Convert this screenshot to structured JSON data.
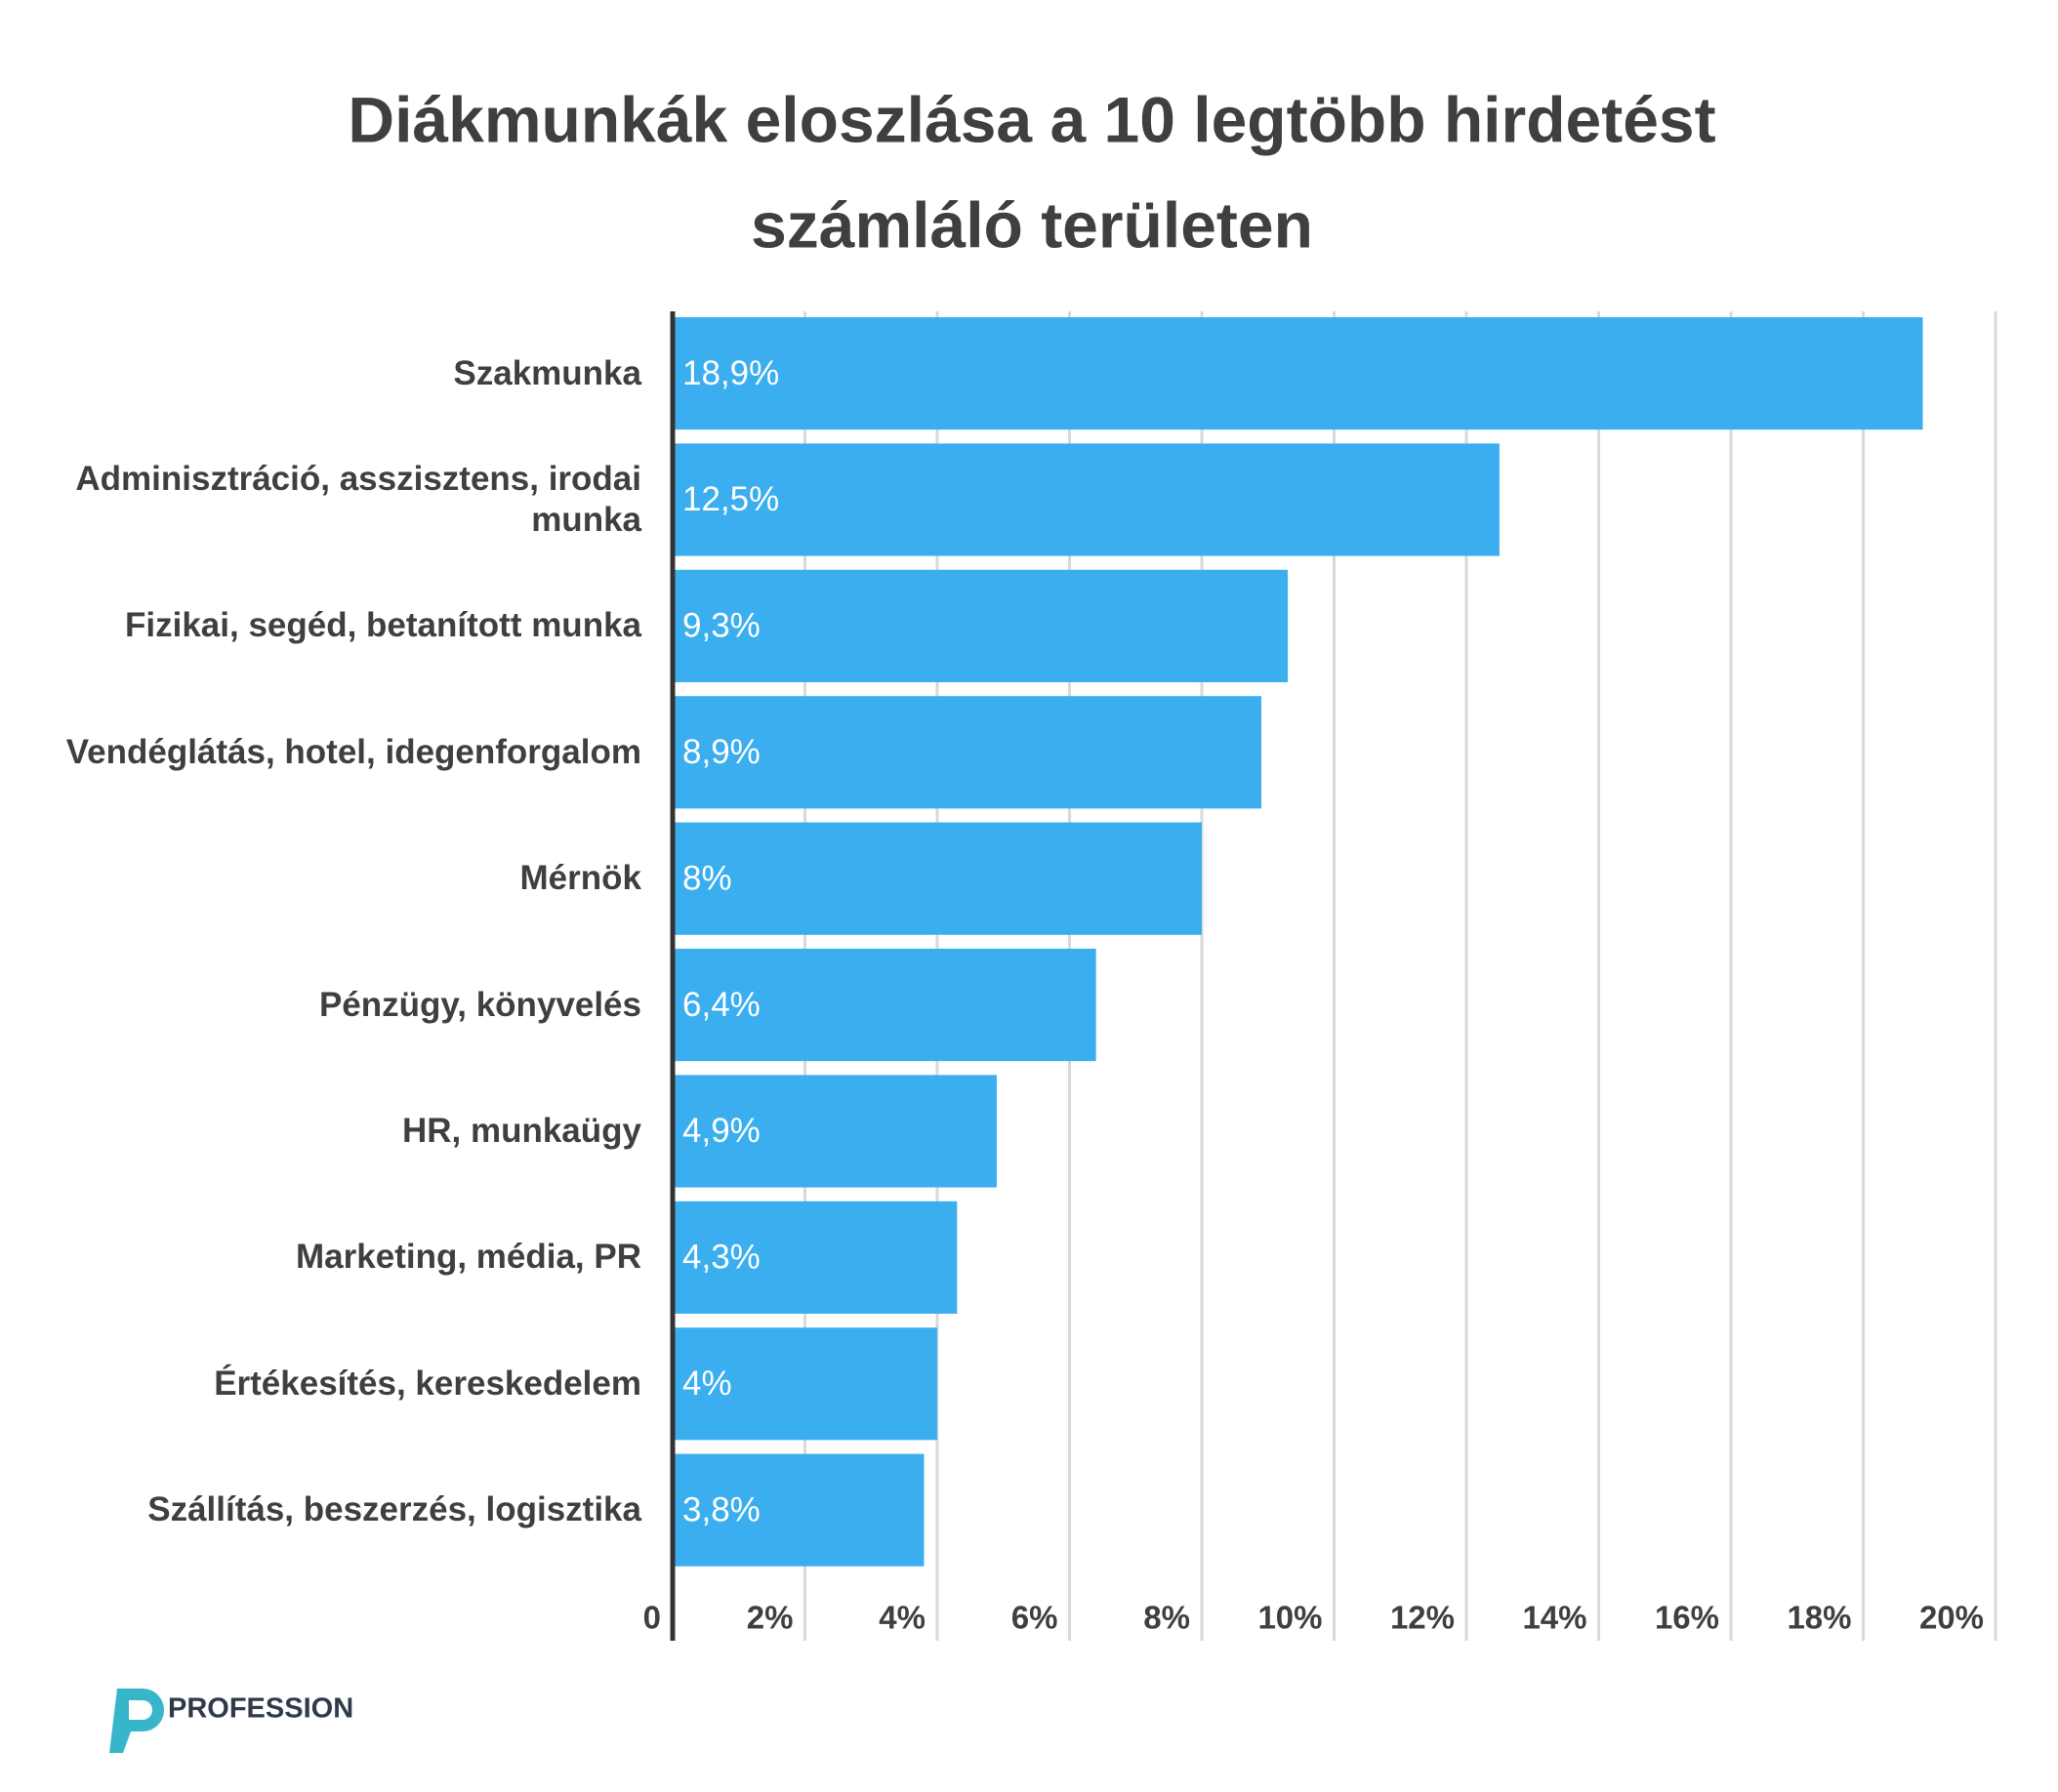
{
  "chart_data": {
    "type": "bar",
    "orientation": "horizontal",
    "title": [
      "Diákmunkák eloszlása a 10 legtöbb hirdetést",
      "számláló területen"
    ],
    "categories": [
      "Szakmunka",
      "Adminisztráció, asszisztens, irodai munka",
      "Fizikai, segéd, betanított munka",
      "Vendéglátás, hotel, idegenforgalom",
      "Mérnök",
      "Pénzügy, könyvelés",
      "HR, munkaügy",
      "Marketing, média, PR",
      "Értékesítés, kereskedelem",
      "Szállítás, beszerzés, logisztika"
    ],
    "values": [
      18.9,
      12.5,
      9.3,
      8.9,
      8,
      6.4,
      4.9,
      4.3,
      4,
      3.8
    ],
    "value_labels": [
      "18,9%",
      "12,5%",
      "9,3%",
      "8,9%",
      "8%",
      "6,4%",
      "4,9%",
      "4,3%",
      "4%",
      "3,8%"
    ],
    "color": "#3aaeef",
    "xlim": [
      0,
      20
    ],
    "xticks": [
      0,
      {
        "value": 2,
        "label": "2%"
      },
      {
        "value": 4,
        "label": "4%"
      },
      {
        "value": 6,
        "label": "6%"
      },
      {
        "value": 8,
        "label": "8%"
      },
      {
        "value": 10,
        "label": "10%"
      },
      {
        "value": 12,
        "label": "12%"
      },
      {
        "value": 14,
        "label": "14%"
      },
      {
        "value": 16,
        "label": "16%"
      },
      {
        "value": 18,
        "label": "18%"
      },
      {
        "value": 20,
        "label": "20%"
      }
    ],
    "grid": true
  },
  "brand": "PROFESSION"
}
